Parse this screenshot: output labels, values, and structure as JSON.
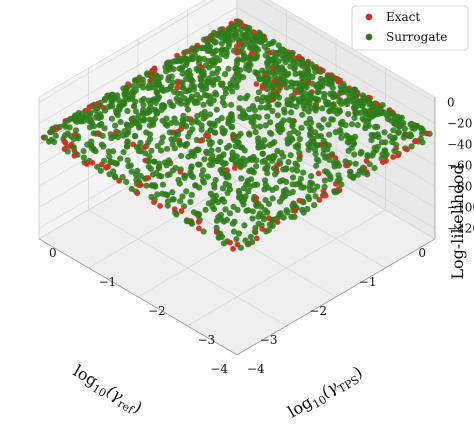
{
  "chart_data": {
    "type": "scatter",
    "projection": "3d",
    "title": "",
    "xlabel": "log10(γref)",
    "xlabel_main": "log",
    "xlabel_sub": "10",
    "xlabel_arg": "(γ",
    "xlabel_argsub": "ref",
    "xlabel_close": ")",
    "ylabel": "log10(γTPS)",
    "ylabel_main": "log",
    "ylabel_sub": "10",
    "ylabel_arg": "(γ",
    "ylabel_argsub": "TPS",
    "ylabel_close": ")",
    "zlabel": "Log-likelihood",
    "xlim": [
      -4,
      0
    ],
    "ylim": [
      -4,
      0
    ],
    "zlim": [
      -130,
      5
    ],
    "x_ticks": [
      "0",
      "−1",
      "−2",
      "−3",
      "−4"
    ],
    "y_ticks": [
      "0",
      "−1",
      "−2",
      "−3",
      "−4"
    ],
    "z_ticks": [
      "0",
      "−20",
      "−40",
      "−60",
      "−80",
      "−100",
      "−120"
    ],
    "legend_position": "top-right",
    "grid": true,
    "surface_model": "z = -8 * (max(|x+2|, |y+2|))^2, peak ≈ 0 at (−2, −2), corners ≈ −128",
    "series": [
      {
        "name": "Exact",
        "color": "#d62d20",
        "n_points": 200,
        "sampling": "samples concentrated on the domain boundary edges"
      },
      {
        "name": "Surrogate",
        "color": "#2e7d18",
        "n_points": 1600,
        "sampling": "dense uniform samples over the domain"
      }
    ]
  }
}
